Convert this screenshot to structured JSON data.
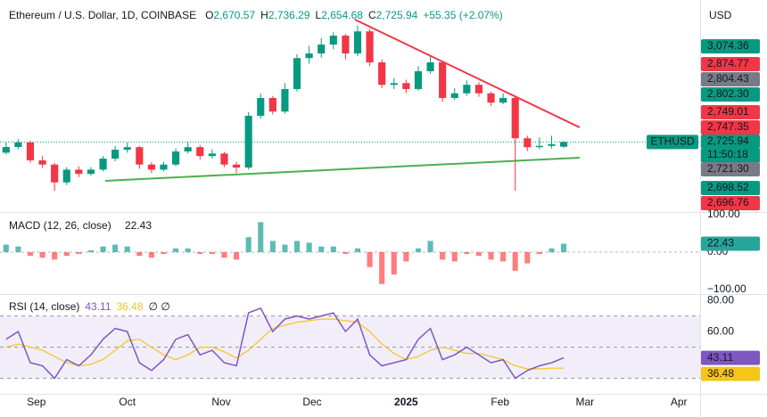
{
  "chart_data": [
    {
      "type": "candlestick",
      "title": "Ethereum / U.S. Dollar, 1D, COINBASE",
      "ohlc": [
        {
          "key": "O",
          "value": "2,670.57"
        },
        {
          "key": "H",
          "value": "2,736.29"
        },
        {
          "key": "L",
          "value": "2,654.68"
        },
        {
          "key": "C",
          "value": "2,725.94"
        }
      ],
      "change": "+55.35 (+2.07%)",
      "currency": "USD",
      "symbol_tag": "ETHUSD",
      "countdown": "11:50:18",
      "up_color": "#089981",
      "down_color": "#f23645",
      "x": [
        -10,
        -6,
        -2,
        2,
        6,
        10,
        14,
        18,
        22,
        26,
        30,
        34,
        38,
        42,
        46,
        50,
        54,
        58,
        62,
        66,
        70,
        74,
        78,
        82,
        86,
        90,
        94,
        98,
        102,
        106,
        110,
        114,
        118,
        122,
        126,
        130,
        134,
        138,
        142,
        146,
        150,
        154,
        158,
        162,
        166,
        170,
        174
      ],
      "open": [
        2600,
        2667,
        2720,
        2510,
        2460,
        2250,
        2400,
        2350,
        2400,
        2530,
        2635,
        2665,
        2460,
        2400,
        2460,
        2615,
        2665,
        2560,
        2590,
        2460,
        2425,
        3035,
        3245,
        3085,
        3350,
        3715,
        3770,
        3875,
        3980,
        3770,
        4030,
        3665,
        3400,
        3420,
        3350,
        3560,
        3665,
        3245,
        3300,
        3400,
        3300,
        3190,
        3245,
        2770,
        2665,
        2680,
        2670.57
      ],
      "high": [
        2720,
        2760,
        2740,
        2560,
        2480,
        2430,
        2440,
        2430,
        2560,
        2680,
        2720,
        2680,
        2490,
        2490,
        2650,
        2720,
        2690,
        2640,
        2610,
        2490,
        3080,
        3300,
        3270,
        3420,
        3760,
        3860,
        3950,
        4020,
        4000,
        4100,
        4060,
        3700,
        3480,
        3460,
        3620,
        3740,
        3680,
        3360,
        3450,
        3430,
        3320,
        3300,
        3260,
        2800,
        2780,
        2800,
        2736.29
      ],
      "low": [
        2580,
        2640,
        2480,
        2420,
        2150,
        2220,
        2310,
        2330,
        2380,
        2500,
        2600,
        2410,
        2360,
        2380,
        2440,
        2590,
        2520,
        2530,
        2430,
        2360,
        2400,
        3000,
        3050,
        3060,
        3320,
        3650,
        3720,
        3820,
        3700,
        3740,
        3620,
        3360,
        3350,
        3300,
        3330,
        3530,
        3200,
        3220,
        3270,
        3260,
        3150,
        3170,
        2150,
        2620,
        2640,
        2650,
        2654.68
      ],
      "close": [
        2667,
        2720,
        2510,
        2460,
        2250,
        2400,
        2350,
        2400,
        2530,
        2635,
        2665,
        2460,
        2400,
        2460,
        2615,
        2665,
        2560,
        2590,
        2460,
        2425,
        3035,
        3245,
        3085,
        3350,
        3715,
        3770,
        3875,
        3980,
        3770,
        4030,
        3665,
        3400,
        3420,
        3350,
        3560,
        3665,
        3245,
        3300,
        3400,
        3300,
        3190,
        3245,
        2770,
        2665,
        2680,
        2700,
        2725.94
      ],
      "xlim": [
        -12,
        219
      ],
      "ylim": [
        1900,
        4400
      ],
      "price_labels": [
        {
          "label": "3,074.36",
          "color": "#089981"
        },
        {
          "label": "2,874.77",
          "color": "#f23645"
        },
        {
          "label": "2,804.43",
          "color": "#787b86"
        },
        {
          "label": "2,802.30",
          "color": "#089981"
        },
        {
          "label": "2,749.01",
          "color": "#f23645"
        },
        {
          "label": "2,747.35",
          "color": "#f23645"
        },
        {
          "label": "2,725.94",
          "color": "#089981"
        },
        {
          "label": "2,721.30",
          "color": "#787b86"
        },
        {
          "label": "2,698.52",
          "color": "#089981"
        },
        {
          "label": "2,696.76",
          "color": "#f23645"
        }
      ]
    },
    {
      "type": "bar",
      "title": "MACD (12, 26, close)",
      "x": [
        -10,
        -6,
        -2,
        2,
        6,
        10,
        14,
        18,
        22,
        26,
        30,
        34,
        38,
        42,
        46,
        50,
        54,
        58,
        62,
        66,
        70,
        74,
        78,
        82,
        86,
        90,
        94,
        98,
        102,
        106,
        110,
        114,
        118,
        122,
        126,
        130,
        134,
        138,
        142,
        146,
        150,
        154,
        158,
        162,
        166,
        170,
        174
      ],
      "values": [
        20,
        15,
        -10,
        -15,
        -20,
        -10,
        -5,
        5,
        15,
        20,
        15,
        -10,
        -15,
        -5,
        10,
        10,
        -5,
        -5,
        -15,
        -20,
        40,
        80,
        30,
        20,
        30,
        25,
        15,
        15,
        -5,
        10,
        -40,
        -85,
        -60,
        -25,
        10,
        30,
        -20,
        -25,
        -5,
        -10,
        -20,
        -25,
        -50,
        -30,
        -5,
        10,
        22.43
      ],
      "positive_color": "#26a69a",
      "negative_color": "#ff5252",
      "xlim": [
        -12,
        219
      ],
      "ylim": [
        -112,
        107
      ],
      "yticks": [
        {
          "value": 100,
          "label": "100.00"
        },
        {
          "value": 0,
          "label": "0.00"
        },
        {
          "value": -100,
          "label": "−100.00"
        }
      ]
    },
    {
      "type": "line",
      "title": "RSI (14, close)",
      "extra": "∅ ∅",
      "x": [
        -10,
        -6,
        -2,
        2,
        6,
        10,
        14,
        18,
        22,
        26,
        30,
        34,
        38,
        42,
        46,
        50,
        54,
        58,
        62,
        66,
        70,
        74,
        78,
        82,
        86,
        90,
        94,
        98,
        102,
        106,
        110,
        114,
        118,
        122,
        126,
        130,
        134,
        138,
        142,
        146,
        150,
        154,
        158,
        162,
        166,
        170,
        174
      ],
      "series": [
        {
          "color": "#7e57c2",
          "values": [
            55,
            60,
            40,
            38,
            30,
            42,
            38,
            45,
            55,
            62,
            60,
            40,
            35,
            42,
            55,
            58,
            45,
            48,
            40,
            38,
            72,
            75,
            60,
            68,
            70,
            68,
            70,
            72,
            60,
            68,
            45,
            38,
            40,
            42,
            55,
            62,
            42,
            45,
            50,
            45,
            40,
            42,
            30,
            35,
            38,
            40,
            43.11
          ]
        },
        {
          "color": "#f5c518",
          "values": [
            50,
            52,
            50,
            48,
            44,
            40,
            38,
            39,
            42,
            48,
            54,
            55,
            50,
            45,
            42,
            45,
            50,
            50,
            47,
            43,
            48,
            55,
            62,
            64,
            66,
            67,
            68,
            68,
            67,
            66,
            60,
            52,
            46,
            42,
            44,
            48,
            50,
            48,
            46,
            46,
            44,
            42,
            38,
            36,
            36,
            36.5,
            36.48
          ]
        }
      ],
      "levels": [
        70,
        50,
        30
      ],
      "xlim": [
        -12,
        219
      ],
      "ylim": [
        20,
        84.1
      ],
      "yticks": [
        {
          "value": 80,
          "label": "80.00"
        },
        {
          "value": 60,
          "label": "60.00"
        }
      ],
      "xticks": [
        {
          "value": 0,
          "label": "Sep"
        },
        {
          "value": 30,
          "label": "Oct"
        },
        {
          "value": 61,
          "label": "Nov"
        },
        {
          "value": 91,
          "label": "Dec"
        },
        {
          "value": 122,
          "label": "2025"
        },
        {
          "value": 153,
          "label": "Feb"
        },
        {
          "value": 181,
          "label": "Mar"
        },
        {
          "value": 212,
          "label": "Apr"
        }
      ]
    }
  ]
}
